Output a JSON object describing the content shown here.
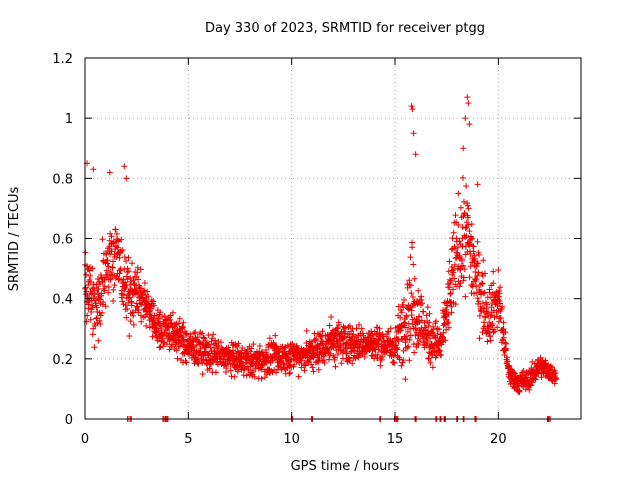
{
  "chart_data": {
    "type": "scatter",
    "title": "Day 330 of 2023, SRMTID for receiver ptgg",
    "xlabel": "GPS time / hours",
    "ylabel": "SRMTID / TECUs",
    "xlim": [
      0,
      24
    ],
    "ylim": [
      0,
      1.2
    ],
    "xticks": [
      0,
      5,
      10,
      15,
      20
    ],
    "yticks": [
      0,
      0.2,
      0.4,
      0.6,
      0.8,
      1,
      1.2
    ],
    "xtick_labels": [
      "0",
      "5",
      "10",
      "15",
      "20"
    ],
    "ytick_labels": [
      "0",
      "0.2",
      "0.4",
      "0.6",
      "0.8",
      "1",
      "1.2"
    ],
    "grid": true,
    "marker": "+",
    "color": "#ee0000",
    "density_profile": [
      [
        0.0,
        0.5,
        0.18
      ],
      [
        0.5,
        0.34,
        0.15
      ],
      [
        1.0,
        0.52,
        0.16
      ],
      [
        1.5,
        0.55,
        0.14
      ],
      [
        2.0,
        0.42,
        0.14
      ],
      [
        2.5,
        0.42,
        0.1
      ],
      [
        3.0,
        0.38,
        0.09
      ],
      [
        3.5,
        0.3,
        0.08
      ],
      [
        4.0,
        0.3,
        0.08
      ],
      [
        5.0,
        0.24,
        0.07
      ],
      [
        6.0,
        0.22,
        0.07
      ],
      [
        7.0,
        0.2,
        0.06
      ],
      [
        8.0,
        0.19,
        0.06
      ],
      [
        9.0,
        0.2,
        0.07
      ],
      [
        10.0,
        0.21,
        0.06
      ],
      [
        11.0,
        0.22,
        0.07
      ],
      [
        12.0,
        0.26,
        0.09
      ],
      [
        13.0,
        0.25,
        0.07
      ],
      [
        14.0,
        0.25,
        0.07
      ],
      [
        15.0,
        0.24,
        0.07
      ],
      [
        15.8,
        0.4,
        0.22
      ],
      [
        16.5,
        0.28,
        0.1
      ],
      [
        17.2,
        0.24,
        0.08
      ],
      [
        18.0,
        0.55,
        0.2
      ],
      [
        18.5,
        0.62,
        0.2
      ],
      [
        19.0,
        0.45,
        0.15
      ],
      [
        19.5,
        0.35,
        0.12
      ],
      [
        20.0,
        0.4,
        0.12
      ],
      [
        20.5,
        0.15,
        0.04
      ],
      [
        21.0,
        0.12,
        0.04
      ],
      [
        21.5,
        0.13,
        0.04
      ],
      [
        22.0,
        0.18,
        0.04
      ],
      [
        22.8,
        0.14,
        0.03
      ]
    ],
    "outliers": [
      [
        0.1,
        0.85
      ],
      [
        0.4,
        0.83
      ],
      [
        1.2,
        0.82
      ],
      [
        1.9,
        0.84
      ],
      [
        2.0,
        0.8
      ],
      [
        15.8,
        1.04
      ],
      [
        15.85,
        1.03
      ],
      [
        15.9,
        0.95
      ],
      [
        16.0,
        0.88
      ],
      [
        18.4,
        1.0
      ],
      [
        18.5,
        1.07
      ],
      [
        18.55,
        1.05
      ],
      [
        18.6,
        0.98
      ],
      [
        18.3,
        0.9
      ],
      [
        19.0,
        0.78
      ]
    ],
    "zero_values_x": [
      2.05,
      2.2,
      3.8,
      3.9,
      4.0,
      10.0,
      11.0,
      14.3,
      15.0,
      15.1,
      16.0,
      17.0,
      17.2,
      17.4,
      18.0,
      18.3,
      18.9,
      22.4,
      22.5
    ]
  }
}
